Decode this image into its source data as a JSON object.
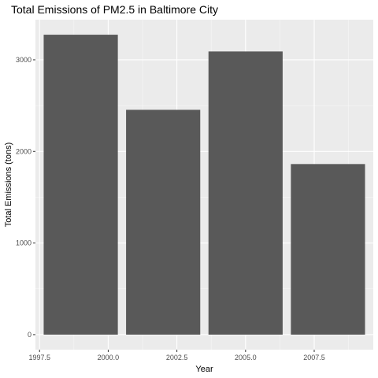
{
  "chart_data": {
    "type": "bar",
    "title": "Total Emissions of PM2.5 in Baltimore City",
    "xlabel": "Year",
    "ylabel": "Total Emissions (tons)",
    "x": [
      1999,
      2002,
      2005,
      2008
    ],
    "values": [
      3274,
      2454,
      3091,
      1862
    ],
    "xlim": [
      1997.35,
      2009.65
    ],
    "ylim": [
      -164,
      3438
    ],
    "xticks": [
      1997.5,
      2000.0,
      2002.5,
      2005.0,
      2007.5
    ],
    "xtick_labels": [
      "1997.5",
      "2000.0",
      "2002.5",
      "2005.0",
      "2007.5"
    ],
    "yticks": [
      0,
      1000,
      2000,
      3000
    ],
    "ytick_labels": [
      "0",
      "1000",
      "2000",
      "3000"
    ],
    "bar_width_years": 2.7,
    "grid": true,
    "colors": {
      "bar": "#595959",
      "panel": "#ebebeb",
      "grid_major": "#ffffff"
    }
  }
}
